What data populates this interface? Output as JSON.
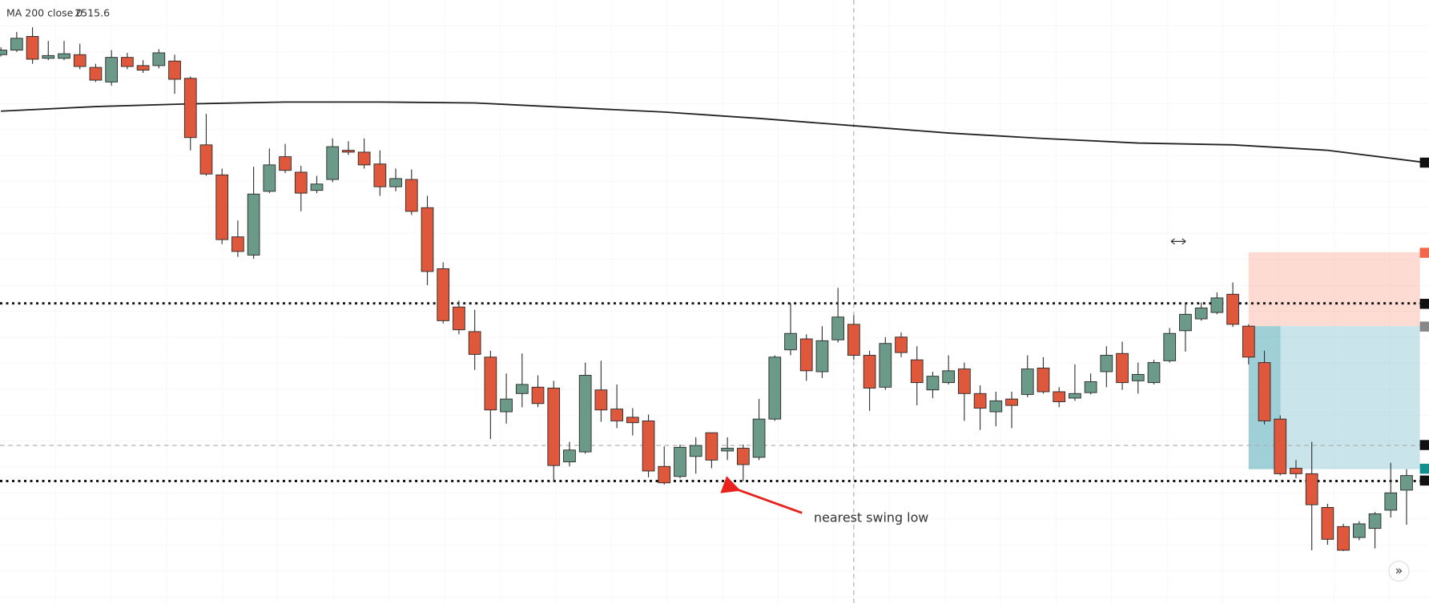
{
  "chart_data": {
    "type": "candlestick",
    "ylim": [
      2467.1,
      2533.4
    ],
    "up_color": "#6b9b88",
    "down_color": "#e0583c",
    "candles": {
      "ohlc": [
        [
          2527.4,
          2528.2,
          2527.2,
          2527.9
        ],
        [
          2527.9,
          2529.9,
          2527.7,
          2529.2
        ],
        [
          2529.4,
          2530.4,
          2526.4,
          2526.9
        ],
        [
          2527.0,
          2528.9,
          2526.8,
          2527.3
        ],
        [
          2527.0,
          2528.9,
          2526.8,
          2527.5
        ],
        [
          2527.4,
          2528.6,
          2525.8,
          2526.1
        ],
        [
          2526.0,
          2526.4,
          2524.4,
          2524.6
        ],
        [
          2524.4,
          2527.9,
          2524.0,
          2527.1
        ],
        [
          2527.1,
          2527.6,
          2525.8,
          2526.1
        ],
        [
          2526.2,
          2526.8,
          2525.4,
          2525.7
        ],
        [
          2526.2,
          2528.0,
          2525.9,
          2527.6
        ],
        [
          2526.7,
          2527.4,
          2523.1,
          2524.7
        ],
        [
          2524.8,
          2525.0,
          2516.9,
          2518.3
        ],
        [
          2517.5,
          2520.9,
          2514.1,
          2514.3
        ],
        [
          2514.2,
          2514.9,
          2506.6,
          2507.1
        ],
        [
          2507.4,
          2509.2,
          2505.2,
          2505.8
        ],
        [
          2505.4,
          2515.1,
          2505.0,
          2512.1
        ],
        [
          2512.4,
          2517.1,
          2512.2,
          2515.3
        ],
        [
          2516.2,
          2517.6,
          2514.4,
          2514.7
        ],
        [
          2514.5,
          2515.2,
          2510.2,
          2512.2
        ],
        [
          2512.5,
          2514.1,
          2512.2,
          2513.2
        ],
        [
          2513.7,
          2518.2,
          2513.4,
          2517.3
        ],
        [
          2516.9,
          2517.9,
          2516.4,
          2516.7
        ],
        [
          2516.7,
          2518.2,
          2514.9,
          2515.3
        ],
        [
          2515.4,
          2516.9,
          2511.9,
          2512.9
        ],
        [
          2512.9,
          2514.9,
          2512.4,
          2513.8
        ],
        [
          2513.7,
          2514.8,
          2509.8,
          2510.2
        ],
        [
          2510.6,
          2511.9,
          2502.1,
          2503.6
        ],
        [
          2503.9,
          2504.6,
          2497.9,
          2498.2
        ],
        [
          2499.7,
          2500.4,
          2496.7,
          2497.2
        ],
        [
          2497.0,
          2499.4,
          2492.8,
          2494.5
        ],
        [
          2494.2,
          2494.9,
          2485.2,
          2488.4
        ],
        [
          2488.2,
          2492.4,
          2486.9,
          2489.6
        ],
        [
          2490.2,
          2494.6,
          2488.7,
          2491.2
        ],
        [
          2490.9,
          2492.2,
          2488.7,
          2489.1
        ],
        [
          2490.8,
          2491.6,
          2480.5,
          2482.3
        ],
        [
          2482.7,
          2484.9,
          2482.2,
          2484.0
        ],
        [
          2483.8,
          2493.6,
          2483.6,
          2492.2
        ],
        [
          2490.6,
          2493.8,
          2487.1,
          2488.4
        ],
        [
          2488.5,
          2491.2,
          2486.4,
          2487.2
        ],
        [
          2487.6,
          2488.6,
          2485.6,
          2487.0
        ],
        [
          2487.2,
          2487.9,
          2481.0,
          2481.7
        ],
        [
          2482.2,
          2484.4,
          2480.2,
          2480.4
        ],
        [
          2481.1,
          2484.6,
          2480.9,
          2484.3
        ],
        [
          2483.3,
          2485.4,
          2481.4,
          2484.5
        ],
        [
          2485.9,
          2485.9,
          2482.0,
          2482.9
        ],
        [
          2483.9,
          2485.4,
          2482.9,
          2484.2
        ],
        [
          2484.2,
          2484.6,
          2480.6,
          2482.4
        ],
        [
          2483.2,
          2489.6,
          2482.9,
          2487.4
        ],
        [
          2487.4,
          2494.4,
          2487.2,
          2494.2
        ],
        [
          2495.0,
          2500.1,
          2494.4,
          2496.8
        ],
        [
          2496.2,
          2496.7,
          2491.6,
          2492.7
        ],
        [
          2492.6,
          2497.6,
          2491.9,
          2496.0
        ],
        [
          2496.1,
          2501.8,
          2495.8,
          2498.6
        ],
        [
          2497.8,
          2498.8,
          2493.9,
          2494.4
        ],
        [
          2494.4,
          2494.9,
          2488.3,
          2490.8
        ],
        [
          2490.9,
          2496.4,
          2490.6,
          2495.7
        ],
        [
          2496.4,
          2496.9,
          2494.2,
          2494.7
        ],
        [
          2493.9,
          2495.4,
          2488.9,
          2491.4
        ],
        [
          2490.6,
          2492.6,
          2489.7,
          2492.1
        ],
        [
          2491.4,
          2494.4,
          2491.2,
          2492.7
        ],
        [
          2492.9,
          2493.6,
          2487.2,
          2490.2
        ],
        [
          2490.2,
          2491.1,
          2486.2,
          2488.6
        ],
        [
          2488.2,
          2490.4,
          2486.6,
          2489.4
        ],
        [
          2489.6,
          2490.4,
          2486.4,
          2488.9
        ],
        [
          2490.1,
          2494.4,
          2489.8,
          2492.9
        ],
        [
          2493.0,
          2494.2,
          2490.2,
          2490.4
        ],
        [
          2490.4,
          2490.9,
          2488.7,
          2489.3
        ],
        [
          2489.7,
          2493.4,
          2489.4,
          2490.2
        ],
        [
          2490.3,
          2492.4,
          2490.1,
          2491.5
        ],
        [
          2492.6,
          2495.4,
          2490.9,
          2494.4
        ],
        [
          2494.6,
          2495.9,
          2490.6,
          2491.4
        ],
        [
          2491.6,
          2493.6,
          2490.2,
          2492.3
        ],
        [
          2491.4,
          2493.9,
          2491.2,
          2493.6
        ],
        [
          2493.8,
          2497.4,
          2493.6,
          2496.8
        ],
        [
          2497.1,
          2500.1,
          2494.8,
          2498.9
        ],
        [
          2498.4,
          2500.2,
          2498.2,
          2499.6
        ],
        [
          2499.1,
          2501.3,
          2498.9,
          2500.7
        ],
        [
          2501.1,
          2502.4,
          2497.5,
          2497.8
        ],
        [
          2497.6,
          2497.8,
          2493.4,
          2494.2
        ],
        [
          2493.6,
          2494.9,
          2486.8,
          2487.2
        ],
        [
          2487.4,
          2487.8,
          2481.2,
          2481.4
        ],
        [
          2482.0,
          2482.9,
          2480.9,
          2481.4
        ],
        [
          2481.4,
          2484.9,
          2473.0,
          2478.0
        ],
        [
          2477.7,
          2478.1,
          2473.6,
          2474.2
        ],
        [
          2475.6,
          2475.9,
          2472.9,
          2473.0
        ],
        [
          2474.4,
          2476.2,
          2474.1,
          2475.9
        ],
        [
          2475.4,
          2477.2,
          2473.2,
          2477.0
        ],
        [
          2477.4,
          2482.6,
          2476.6,
          2479.3
        ],
        [
          2479.6,
          2481.9,
          2475.8,
          2481.2
        ]
      ]
    },
    "ma": {
      "name": "MA 200 close 0",
      "last": 2515.6,
      "color": "#222222",
      "x": [
        0,
        6,
        12,
        18,
        24,
        30,
        36,
        42,
        48,
        54,
        60,
        66,
        72,
        78,
        84,
        90
      ],
      "values": [
        2521.2,
        2521.7,
        2522.0,
        2522.2,
        2522.2,
        2522.1,
        2521.6,
        2521.1,
        2520.4,
        2519.6,
        2518.8,
        2518.2,
        2517.7,
        2517.5,
        2516.9,
        2515.6
      ]
    },
    "levels": [
      2500.1,
      2480.6
    ],
    "crosshair": {
      "index": 54,
      "price": 2484.5
    },
    "position": {
      "start": 79,
      "stop": 2505.7,
      "entry": 2497.6,
      "target": 2481.9
    },
    "annotation": "nearest swing low",
    "scroll_button": "»"
  }
}
